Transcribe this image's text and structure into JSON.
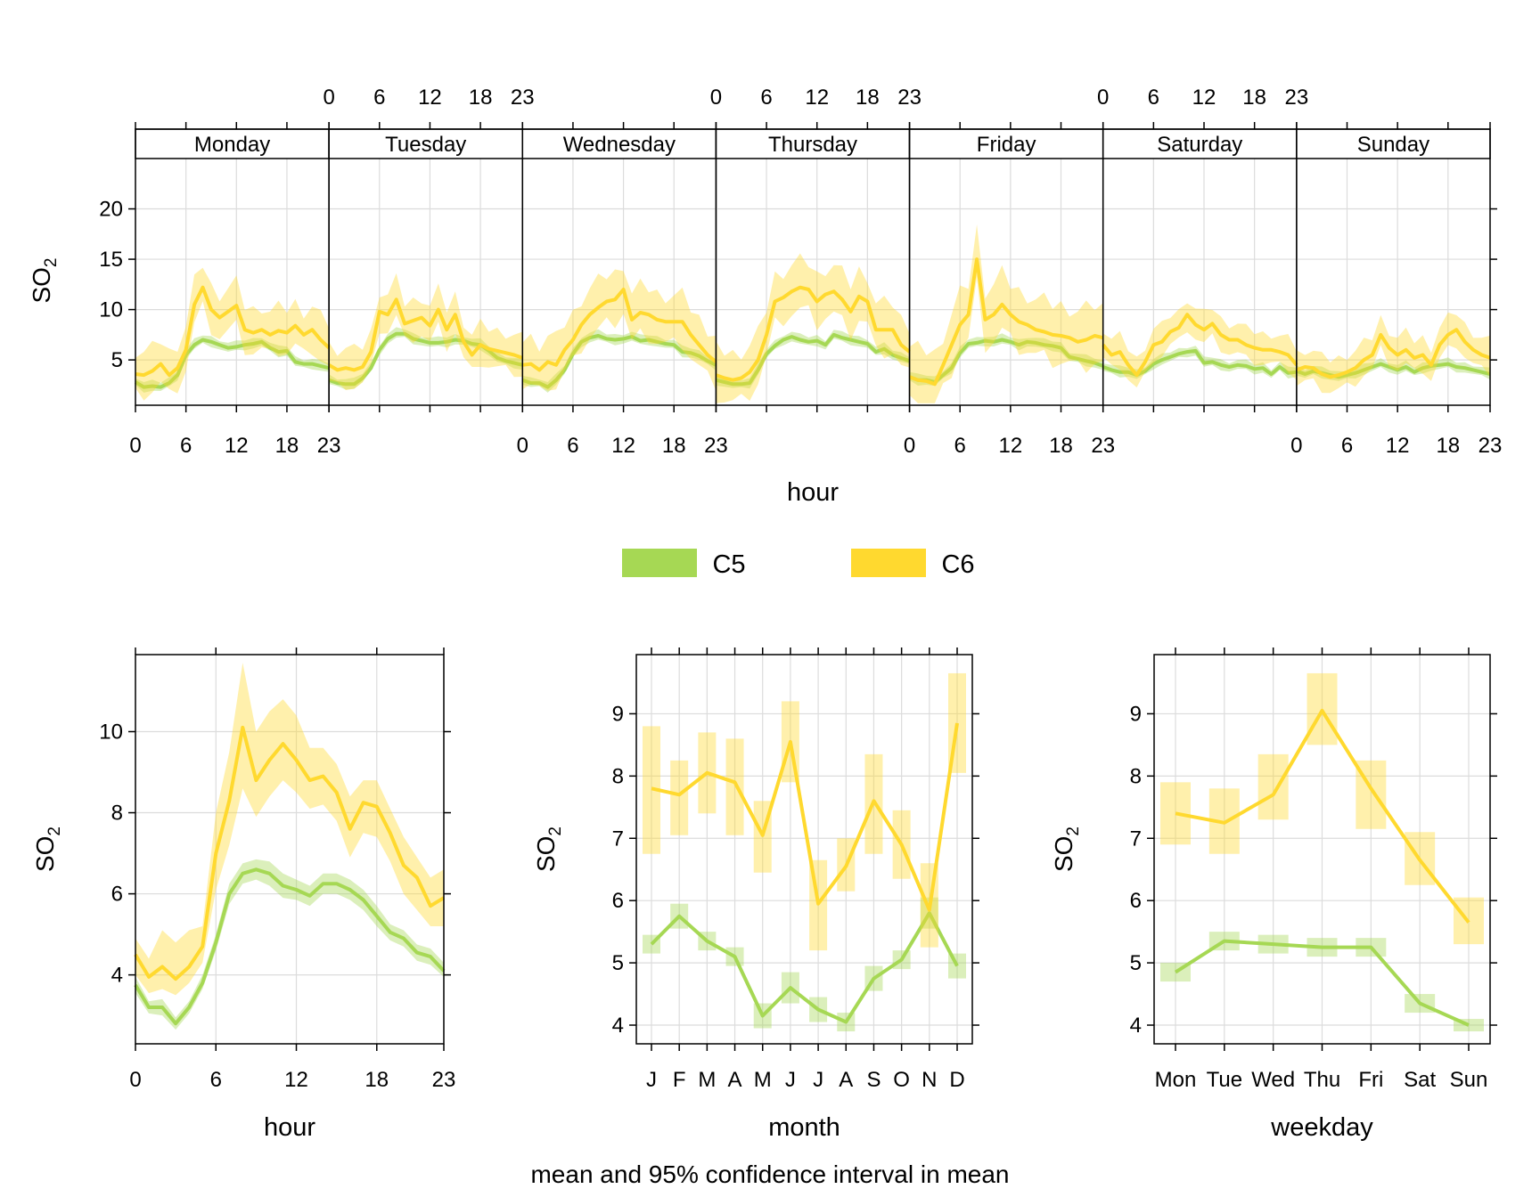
{
  "chart_data": {
    "type": "line",
    "caption": "mean and 95% confidence interval in mean",
    "colors": {
      "C5": "#A6D854",
      "C6": "#FFD92F",
      "C5_band": "#A6D854",
      "C6_band": "#FFD92F"
    },
    "legend": {
      "placement": "center",
      "items": [
        {
          "name": "C5"
        },
        {
          "name": "C6"
        }
      ]
    },
    "panels": [
      {
        "id": "hour-weekday",
        "xlabel": "hour",
        "ylabel": "SO",
        "ylabel_sub": "2",
        "xticks": [
          0,
          6,
          12,
          18,
          23
        ],
        "yticks": [
          5,
          10,
          15,
          20
        ],
        "ylim": [
          0.5,
          25
        ],
        "days": [
          "Monday",
          "Tuesday",
          "Wednesday",
          "Thursday",
          "Friday",
          "Saturday",
          "Sunday"
        ],
        "series": [
          {
            "name": "C5",
            "values": [
              [
                2.8,
                2.3,
                2.4,
                2.3,
                2.7,
                3.5,
                5.5,
                6.5,
                7.0,
                6.8,
                6.5,
                6.2,
                6.3,
                6.5,
                6.6,
                6.8,
                6.2,
                5.8,
                5.9,
                4.8,
                4.6,
                4.6,
                4.4,
                4.2
              ],
              [
                3.0,
                2.7,
                2.6,
                2.6,
                3.2,
                4.2,
                6.0,
                7.1,
                7.6,
                7.6,
                7.1,
                6.9,
                6.7,
                6.7,
                6.8,
                7.0,
                6.9,
                6.6,
                6.5,
                5.9,
                5.2,
                4.9,
                4.7,
                4.5
              ],
              [
                3.0,
                2.7,
                2.7,
                2.3,
                3.0,
                4.0,
                5.6,
                6.8,
                7.2,
                7.4,
                7.1,
                7.0,
                7.1,
                7.3,
                6.9,
                7.0,
                6.8,
                6.6,
                6.5,
                5.8,
                5.7,
                5.4,
                4.9,
                4.5
              ],
              [
                3.0,
                2.8,
                2.6,
                2.6,
                2.7,
                4.0,
                5.6,
                6.4,
                7.0,
                7.3,
                7.0,
                6.8,
                6.9,
                6.5,
                7.5,
                7.2,
                7.0,
                6.8,
                6.6,
                5.8,
                6.1,
                5.5,
                5.2,
                4.9
              ],
              [
                3.3,
                3.0,
                3.0,
                2.8,
                3.5,
                4.2,
                5.7,
                6.6,
                6.7,
                6.9,
                6.8,
                7.0,
                6.8,
                6.5,
                6.8,
                6.7,
                6.5,
                6.4,
                6.2,
                5.3,
                5.1,
                4.9,
                4.7,
                4.4
              ],
              [
                4.3,
                4.0,
                3.8,
                3.8,
                3.5,
                3.9,
                4.6,
                5.0,
                5.3,
                5.6,
                5.8,
                5.9,
                4.7,
                4.8,
                4.5,
                4.3,
                4.5,
                4.4,
                4.1,
                4.2,
                3.6,
                4.3,
                3.7,
                3.8
              ],
              [
                3.9,
                3.6,
                3.9,
                3.7,
                3.5,
                3.3,
                3.5,
                3.7,
                4.0,
                4.3,
                4.6,
                4.3,
                4.0,
                4.3,
                3.8,
                4.2,
                4.4,
                4.5,
                4.6,
                4.3,
                4.2,
                4.0,
                3.8,
                3.6
              ]
            ],
            "ci": [
              0.5,
              0.5,
              0.5,
              0.5,
              0.5,
              0.5,
              0.5
            ]
          },
          {
            "name": "C6",
            "values": [
              [
                3.6,
                3.5,
                3.9,
                4.6,
                3.5,
                4.2,
                6.0,
                10.5,
                12.2,
                10.0,
                9.2,
                9.8,
                10.4,
                8.0,
                7.7,
                8.0,
                7.5,
                7.9,
                7.7,
                8.4,
                7.5,
                8.0,
                7.0,
                6.2
              ],
              [
                4.5,
                4.0,
                4.2,
                4.0,
                4.3,
                5.8,
                9.8,
                9.5,
                11.0,
                8.6,
                8.9,
                9.2,
                8.4,
                10.0,
                8.0,
                9.5,
                6.8,
                5.5,
                6.5,
                6.1,
                5.9,
                5.7,
                5.5,
                5.2
              ],
              [
                4.5,
                4.6,
                4.0,
                4.8,
                4.5,
                6.0,
                7.0,
                8.5,
                9.5,
                10.2,
                10.8,
                11.0,
                12.0,
                9.0,
                9.7,
                9.5,
                9.0,
                8.8,
                8.8,
                8.8,
                7.5,
                6.5,
                5.5,
                4.8
              ],
              [
                3.5,
                3.2,
                3.0,
                3.2,
                3.8,
                5.0,
                7.5,
                10.8,
                11.2,
                11.8,
                12.2,
                12.0,
                10.8,
                11.5,
                11.8,
                11.0,
                9.8,
                11.3,
                10.8,
                8.0,
                8.0,
                8.0,
                6.5,
                5.8
              ],
              [
                3.3,
                3.0,
                2.9,
                2.6,
                4.5,
                6.5,
                8.5,
                9.5,
                15.0,
                9.0,
                9.5,
                10.5,
                9.5,
                8.8,
                8.5,
                8.0,
                7.8,
                7.5,
                7.4,
                7.2,
                6.8,
                7.0,
                7.4,
                7.2
              ],
              [
                6.5,
                5.5,
                5.8,
                4.5,
                3.5,
                4.8,
                6.5,
                6.8,
                7.8,
                8.2,
                9.5,
                8.5,
                8.0,
                8.6,
                7.5,
                7.0,
                7.0,
                6.5,
                6.2,
                6.0,
                6.0,
                5.8,
                5.5,
                4.5
              ],
              [
                4.0,
                4.3,
                4.2,
                3.6,
                3.3,
                3.5,
                3.8,
                4.2,
                5.0,
                5.5,
                7.5,
                6.2,
                5.5,
                6.0,
                5.2,
                5.5,
                4.5,
                6.5,
                7.5,
                8.0,
                6.8,
                6.0,
                5.5,
                5.2
              ]
            ],
            "ci": [
              2.3,
              2.0,
              2.6,
              2.6,
              3.0,
              1.6,
              1.7
            ]
          }
        ]
      },
      {
        "id": "hour",
        "xlabel": "hour",
        "ylabel": "SO",
        "ylabel_sub": "2",
        "x": [
          0,
          1,
          2,
          3,
          4,
          5,
          6,
          7,
          8,
          9,
          10,
          11,
          12,
          13,
          14,
          15,
          16,
          17,
          18,
          19,
          20,
          21,
          22,
          23
        ],
        "xticks": [
          0,
          6,
          12,
          18,
          23
        ],
        "yticks": [
          4,
          6,
          8,
          10
        ],
        "ylim": [
          2.3,
          11.9
        ],
        "series": [
          {
            "name": "C5",
            "values": [
              3.75,
              3.2,
              3.2,
              2.8,
              3.2,
              3.8,
              4.8,
              6.0,
              6.5,
              6.6,
              6.5,
              6.2,
              6.1,
              5.95,
              6.25,
              6.25,
              6.1,
              5.85,
              5.45,
              5.05,
              4.9,
              4.55,
              4.45,
              4.1
            ],
            "lower": [
              3.55,
              3.05,
              3.0,
              2.65,
              3.05,
              3.65,
              4.6,
              5.75,
              6.25,
              6.35,
              6.2,
              5.9,
              5.85,
              5.7,
              6.0,
              6.0,
              5.85,
              5.6,
              5.2,
              4.85,
              4.7,
              4.35,
              4.25,
              3.95
            ],
            "upper": [
              3.95,
              3.35,
              3.4,
              2.95,
              3.35,
              4.0,
              5.0,
              6.25,
              6.75,
              6.85,
              6.8,
              6.5,
              6.35,
              6.2,
              6.5,
              6.5,
              6.35,
              6.1,
              5.7,
              5.25,
              5.1,
              4.75,
              4.65,
              4.3
            ]
          },
          {
            "name": "C6",
            "values": [
              4.5,
              3.95,
              4.2,
              3.9,
              4.2,
              4.7,
              7.0,
              8.3,
              10.1,
              8.8,
              9.3,
              9.7,
              9.3,
              8.8,
              8.9,
              8.5,
              7.6,
              8.25,
              8.15,
              7.5,
              6.7,
              6.4,
              5.7,
              5.9
            ],
            "lower": [
              4.0,
              3.55,
              3.65,
              3.5,
              3.8,
              4.3,
              6.1,
              7.2,
              8.6,
              7.9,
              8.4,
              8.8,
              8.5,
              8.1,
              8.2,
              7.8,
              6.9,
              7.5,
              7.4,
              6.8,
              6.0,
              5.6,
              5.2,
              5.2
            ],
            "upper": [
              4.9,
              4.4,
              5.1,
              4.8,
              5.1,
              5.2,
              8.0,
              9.5,
              11.7,
              10.0,
              10.5,
              10.8,
              10.4,
              9.6,
              9.6,
              9.2,
              8.4,
              8.8,
              8.8,
              8.1,
              7.4,
              6.9,
              6.4,
              6.6
            ]
          }
        ]
      },
      {
        "id": "month",
        "xlabel": "month",
        "ylabel": "SO",
        "ylabel_sub": "2",
        "categories": [
          "J",
          "F",
          "M",
          "A",
          "M",
          "J",
          "J",
          "A",
          "S",
          "O",
          "N",
          "D"
        ],
        "yticks": [
          4,
          5,
          6,
          7,
          8,
          9
        ],
        "ylim": [
          3.7,
          9.95
        ],
        "series": [
          {
            "name": "C5",
            "values": [
              5.3,
              5.75,
              5.35,
              5.1,
              4.15,
              4.6,
              4.25,
              4.05,
              4.75,
              5.05,
              5.8,
              4.95
            ],
            "lower": [
              5.15,
              5.55,
              5.2,
              4.95,
              3.95,
              4.35,
              4.05,
              3.9,
              4.55,
              4.9,
              5.55,
              4.75
            ],
            "upper": [
              5.45,
              5.95,
              5.5,
              5.25,
              4.35,
              4.85,
              4.45,
              4.2,
              4.95,
              5.2,
              6.05,
              5.15
            ]
          },
          {
            "name": "C6",
            "values": [
              7.8,
              7.7,
              8.05,
              7.9,
              7.05,
              8.55,
              5.95,
              6.55,
              7.6,
              6.9,
              5.85,
              8.85
            ],
            "lower": [
              6.75,
              7.05,
              7.4,
              7.05,
              6.45,
              7.9,
              5.2,
              6.15,
              6.75,
              6.35,
              5.25,
              8.05
            ],
            "upper": [
              8.8,
              8.25,
              8.7,
              8.6,
              7.6,
              9.2,
              6.65,
              7.0,
              8.35,
              7.45,
              6.6,
              9.65
            ]
          }
        ]
      },
      {
        "id": "weekday",
        "xlabel": "weekday",
        "ylabel": "SO",
        "ylabel_sub": "2",
        "categories": [
          "Mon",
          "Tue",
          "Wed",
          "Thu",
          "Fri",
          "Sat",
          "Sun"
        ],
        "yticks": [
          4,
          5,
          6,
          7,
          8,
          9
        ],
        "ylim": [
          3.7,
          9.95
        ],
        "series": [
          {
            "name": "C5",
            "values": [
              4.85,
              5.35,
              5.3,
              5.25,
              5.25,
              4.35,
              4.0
            ],
            "lower": [
              4.7,
              5.2,
              5.15,
              5.1,
              5.1,
              4.2,
              3.9
            ],
            "upper": [
              5.0,
              5.5,
              5.45,
              5.4,
              5.4,
              4.5,
              4.1
            ]
          },
          {
            "name": "C6",
            "values": [
              7.4,
              7.25,
              7.7,
              9.05,
              7.8,
              6.65,
              5.65
            ],
            "lower": [
              6.9,
              6.75,
              7.3,
              8.5,
              7.15,
              6.25,
              5.3
            ],
            "upper": [
              7.9,
              7.8,
              8.35,
              9.65,
              8.25,
              7.1,
              6.05
            ]
          }
        ]
      }
    ]
  }
}
